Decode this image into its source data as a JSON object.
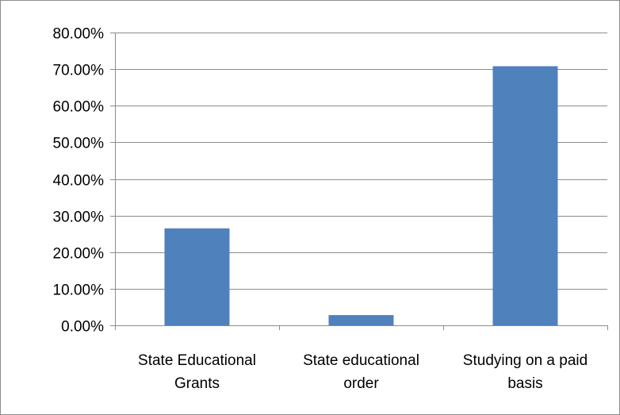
{
  "chart_data": {
    "type": "bar",
    "categories": [
      [
        "State Educational",
        "Grants"
      ],
      [
        "State educational",
        "order"
      ],
      [
        "Studying on a paid",
        "basis"
      ]
    ],
    "values": [
      26.5,
      2.8,
      70.8
    ],
    "y_ticks": [
      "0.00%",
      "10.00%",
      "20.00%",
      "30.00%",
      "40.00%",
      "50.00%",
      "60.00%",
      "70.00%",
      "80.00%"
    ],
    "ylim": [
      0,
      80
    ],
    "grid": true,
    "legend": "none",
    "title": "",
    "xlabel": "",
    "ylabel": "",
    "colors": {
      "bar": "#4f81bd",
      "grid": "#8c8c8c",
      "axis": "#8c8c8c"
    }
  }
}
